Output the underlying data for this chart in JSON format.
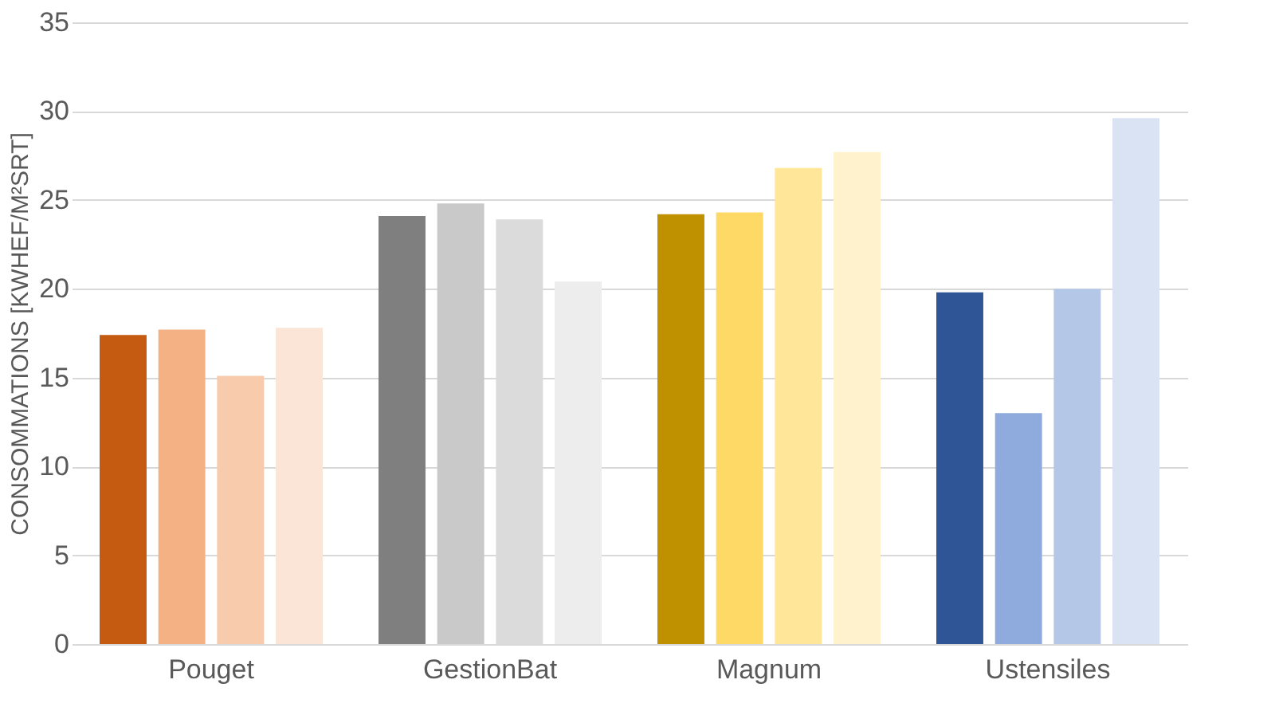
{
  "chart_data": {
    "type": "bar",
    "ylabel": "CONSOMMATIONS [KWHEF/M²SRT]",
    "categories": [
      "Pouget",
      "GestionBat",
      "Magnum",
      "Ustensiles"
    ],
    "series": [
      {
        "colors": [
          "#c55a11",
          "#7f7f7f",
          "#bf9000",
          "#2f5597"
        ],
        "values": [
          17.4,
          24.1,
          24.2,
          19.8
        ]
      },
      {
        "colors": [
          "#f4b183",
          "#c9c9c9",
          "#ffd966",
          "#8faadc"
        ],
        "values": [
          17.7,
          24.8,
          24.3,
          13.0
        ]
      },
      {
        "colors": [
          "#f8cbad",
          "#dbdbdb",
          "#ffe699",
          "#b4c7e7"
        ],
        "values": [
          15.1,
          23.9,
          26.8,
          20.0
        ]
      },
      {
        "colors": [
          "#fbe5d6",
          "#ededed",
          "#fff2cc",
          "#dae3f3"
        ],
        "values": [
          17.8,
          20.4,
          27.7,
          29.6
        ]
      }
    ],
    "ylim": [
      0,
      35
    ],
    "yticks": [
      0,
      5,
      10,
      15,
      20,
      25,
      30,
      35
    ],
    "grid": "y"
  }
}
